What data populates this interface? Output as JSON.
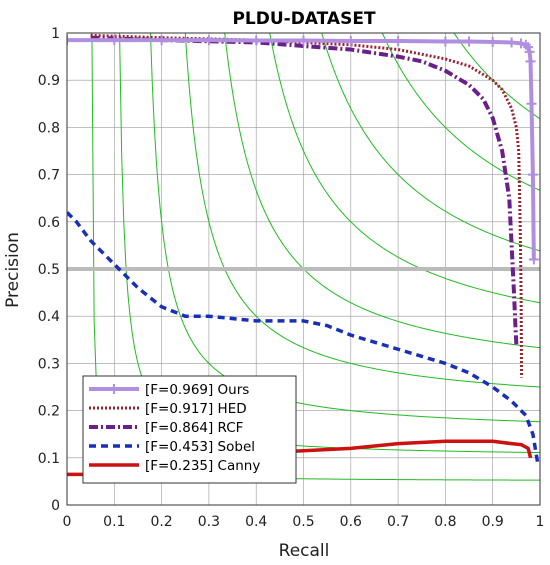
{
  "chart_data": {
    "type": "line",
    "title": "PLDU-DATASET",
    "xlabel": "Recall",
    "ylabel": "Precision",
    "xlim": [
      0,
      1
    ],
    "ylim": [
      0,
      1
    ],
    "xticks": [
      "0",
      "0.1",
      "0.2",
      "0.3",
      "0.4",
      "0.5",
      "0.6",
      "0.7",
      "0.8",
      "0.9",
      "1"
    ],
    "yticks": [
      "0",
      "0.1",
      "0.2",
      "0.3",
      "0.4",
      "0.5",
      "0.6",
      "0.7",
      "0.8",
      "0.9",
      "1"
    ],
    "grid": true,
    "legend_position": "bottom-left",
    "iso_f_values": [
      0.1,
      0.2,
      0.3,
      0.4,
      0.5,
      0.6,
      0.7,
      0.8,
      0.9
    ],
    "iso_f_color": "#22bb22",
    "reference_line": {
      "y": 0.5,
      "color": "#bbbbbb"
    },
    "series": [
      {
        "name": "[F=0.969] Ours",
        "color": "#b08ee0",
        "style": "solid-plus",
        "x": [
          0.0,
          0.1,
          0.2,
          0.3,
          0.4,
          0.5,
          0.6,
          0.7,
          0.8,
          0.85,
          0.9,
          0.94,
          0.96,
          0.97,
          0.975,
          0.978,
          0.98,
          0.982,
          0.985,
          0.987
        ],
        "y": [
          0.985,
          0.985,
          0.985,
          0.985,
          0.984,
          0.984,
          0.983,
          0.983,
          0.982,
          0.982,
          0.981,
          0.98,
          0.978,
          0.975,
          0.97,
          0.96,
          0.94,
          0.85,
          0.7,
          0.52
        ]
      },
      {
        "name": "[F=0.917] HED",
        "color": "#992233",
        "style": "dotted",
        "x": [
          0.05,
          0.2,
          0.4,
          0.6,
          0.7,
          0.8,
          0.85,
          0.9,
          0.92,
          0.94,
          0.95,
          0.955,
          0.958,
          0.96,
          0.961
        ],
        "y": [
          0.995,
          0.99,
          0.985,
          0.975,
          0.965,
          0.945,
          0.93,
          0.9,
          0.88,
          0.84,
          0.8,
          0.75,
          0.6,
          0.45,
          0.27
        ]
      },
      {
        "name": "[F=0.864] RCF",
        "color": "#6b1f8a",
        "style": "dashdot",
        "x": [
          0.05,
          0.2,
          0.4,
          0.6,
          0.7,
          0.75,
          0.8,
          0.85,
          0.88,
          0.9,
          0.92,
          0.935,
          0.94,
          0.945,
          0.948,
          0.95
        ],
        "y": [
          0.99,
          0.985,
          0.98,
          0.965,
          0.95,
          0.94,
          0.92,
          0.89,
          0.86,
          0.82,
          0.75,
          0.65,
          0.55,
          0.45,
          0.38,
          0.34
        ]
      },
      {
        "name": "[F=0.453] Sobel",
        "color": "#1a2fb8",
        "style": "dashed",
        "x": [
          0.0,
          0.02,
          0.05,
          0.1,
          0.15,
          0.2,
          0.25,
          0.3,
          0.4,
          0.5,
          0.55,
          0.6,
          0.7,
          0.8,
          0.85,
          0.9,
          0.94,
          0.97,
          0.985,
          0.995
        ],
        "y": [
          0.62,
          0.6,
          0.56,
          0.51,
          0.46,
          0.42,
          0.4,
          0.4,
          0.39,
          0.39,
          0.38,
          0.36,
          0.33,
          0.3,
          0.28,
          0.25,
          0.22,
          0.19,
          0.15,
          0.09
        ]
      },
      {
        "name": "[F=0.235] Canny",
        "color": "#cc1111",
        "style": "solid",
        "x": [
          0.0,
          0.05,
          0.1,
          0.2,
          0.3,
          0.4,
          0.5,
          0.6,
          0.7,
          0.8,
          0.85,
          0.9,
          0.94,
          0.96,
          0.975,
          0.98
        ],
        "y": [
          0.065,
          0.065,
          0.08,
          0.09,
          0.1,
          0.11,
          0.115,
          0.12,
          0.13,
          0.135,
          0.135,
          0.135,
          0.13,
          0.128,
          0.12,
          0.1
        ]
      }
    ]
  }
}
